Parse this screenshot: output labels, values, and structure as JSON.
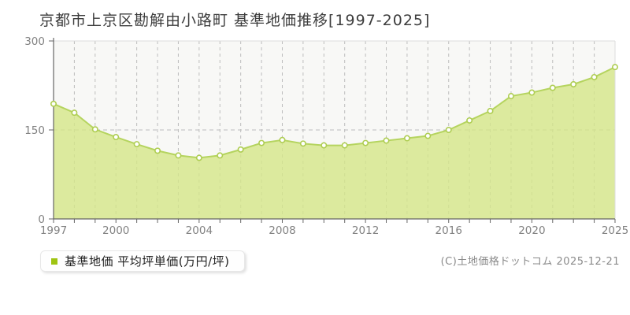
{
  "title": "京都市上京区勘解由小路町 基準地価推移[1997-2025]",
  "legend": {
    "label": "基準地価 平均坪単価(万円/坪)"
  },
  "copyright": "(C)土地価格ドットコム 2025-12-21",
  "chart_data": {
    "type": "area",
    "series_name": "基準地価 平均坪単価(万円/坪)",
    "x": [
      1997,
      1998,
      1999,
      2000,
      2001,
      2002,
      2003,
      2004,
      2005,
      2006,
      2007,
      2008,
      2009,
      2010,
      2011,
      2012,
      2013,
      2014,
      2015,
      2016,
      2017,
      2018,
      2019,
      2020,
      2021,
      2022,
      2023,
      2025
    ],
    "values": [
      194,
      179,
      151,
      138,
      126,
      115,
      107,
      103,
      107,
      117,
      128,
      133,
      127,
      124,
      124,
      128,
      132,
      136,
      140,
      150,
      166,
      182,
      207,
      213,
      221,
      227,
      239,
      256
    ],
    "ylabel": "平均坪単価(万円/坪)",
    "ylim": [
      0,
      300
    ],
    "yticks": [
      0,
      150,
      300
    ],
    "ytick_labels": [
      "0",
      "150",
      "300"
    ],
    "xtick_indices": [
      0,
      3,
      7,
      11,
      15,
      19,
      23,
      27
    ],
    "xtick_labels": [
      "1997",
      "2000",
      "2004",
      "2008",
      "2012",
      "2016",
      "2020",
      "2025"
    ],
    "grid": true,
    "legend_position": "bottom-left",
    "colors": {
      "area_fill": "#d5e688",
      "line": "#b5d45f",
      "marker_fill": "#ffffff",
      "marker_stroke": "#aecd52",
      "legend_swatch": "#9fc412",
      "grid": "#bdbdbd",
      "axis": "#666666",
      "plot_border": "#dddddd",
      "plot_bg": "#f8f8f6",
      "tick_label": "#828282"
    }
  }
}
